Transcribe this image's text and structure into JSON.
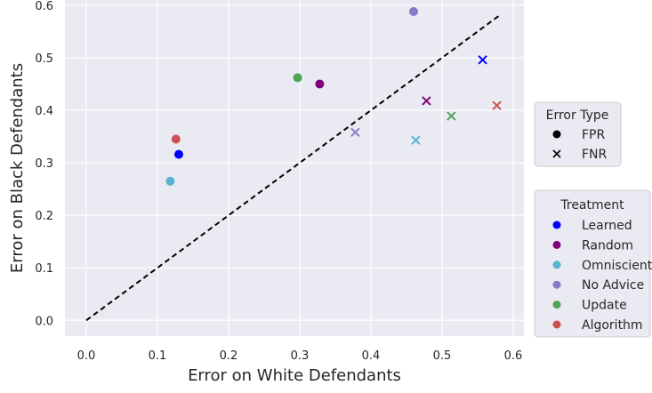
{
  "chart_data": {
    "type": "scatter",
    "title": "",
    "xlabel": "Error on White Defendants",
    "ylabel": "Error on Black Defendants",
    "xlim": [
      -0.03,
      0.615
    ],
    "ylim": [
      -0.03,
      0.61
    ],
    "xticks": [
      "0.0",
      "0.1",
      "0.2",
      "0.3",
      "0.4",
      "0.5",
      "0.6"
    ],
    "yticks": [
      "0.0",
      "0.1",
      "0.2",
      "0.3",
      "0.4",
      "0.5",
      "0.6"
    ],
    "grid": true,
    "background": "#eaeaf2",
    "reference_line": {
      "style": "dashed",
      "color": "#000000",
      "from": [
        0.0,
        0.0
      ],
      "to": [
        0.58,
        0.58
      ]
    },
    "legend_error_type": {
      "title": "Error Type",
      "placement": "right",
      "entries": [
        {
          "label": "FPR",
          "marker": "circle"
        },
        {
          "label": "FNR",
          "marker": "x"
        }
      ]
    },
    "legend_treatment": {
      "title": "Treatment",
      "placement": "right",
      "entries": [
        {
          "label": "Learned",
          "color": "#0000ff"
        },
        {
          "label": "Random",
          "color": "#800080"
        },
        {
          "label": "Omniscient",
          "color": "#5ab4d0"
        },
        {
          "label": "No Advice",
          "color": "#8a79c4"
        },
        {
          "label": "Update",
          "color": "#4fa45a"
        },
        {
          "label": "Algorithm",
          "color": "#cd5050"
        }
      ]
    },
    "series": [
      {
        "treatment": "Learned",
        "color": "#0000ff",
        "fpr": [
          0.13,
          0.316
        ],
        "fnr": [
          0.557,
          0.496
        ]
      },
      {
        "treatment": "Random",
        "color": "#800080",
        "fpr": [
          0.328,
          0.45
        ],
        "fnr": [
          0.478,
          0.418
        ]
      },
      {
        "treatment": "Omniscient",
        "color": "#5ab4d0",
        "fpr": [
          0.118,
          0.265
        ],
        "fnr": [
          0.463,
          0.343
        ]
      },
      {
        "treatment": "No Advice",
        "color": "#8a79c4",
        "fpr": [
          0.46,
          0.588
        ],
        "fnr": [
          0.378,
          0.358
        ]
      },
      {
        "treatment": "Update",
        "color": "#4fa45a",
        "fpr": [
          0.297,
          0.462
        ],
        "fnr": [
          0.513,
          0.389
        ]
      },
      {
        "treatment": "Algorithm",
        "color": "#cd5050",
        "fpr": [
          0.126,
          0.345
        ],
        "fnr": [
          0.577,
          0.409
        ]
      }
    ]
  }
}
